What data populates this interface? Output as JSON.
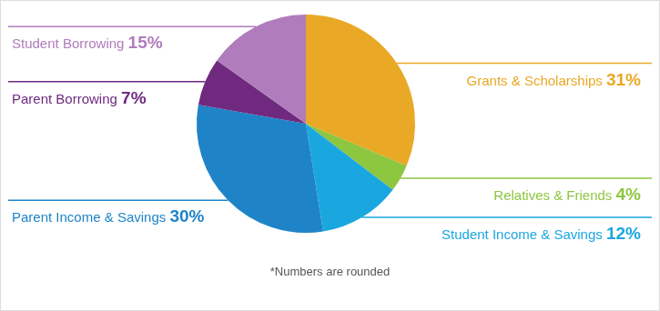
{
  "chart_data": {
    "type": "pie",
    "categories": [
      "Grants & Scholarships",
      "Relatives & Friends",
      "Student Income & Savings",
      "Parent Income & Savings",
      "Parent Borrowing",
      "Student Borrowing"
    ],
    "values": [
      31,
      4,
      12,
      30,
      7,
      15
    ],
    "value_labels": [
      "31%",
      "4%",
      "12%",
      "30%",
      "7%",
      "15%"
    ],
    "colors": [
      "#e9a825",
      "#8dc63f",
      "#1aa7e0",
      "#1e84c7",
      "#6f2a7f",
      "#b07cbc"
    ],
    "data_labels": true,
    "annotations": [
      "*Numbers are rounded"
    ]
  }
}
